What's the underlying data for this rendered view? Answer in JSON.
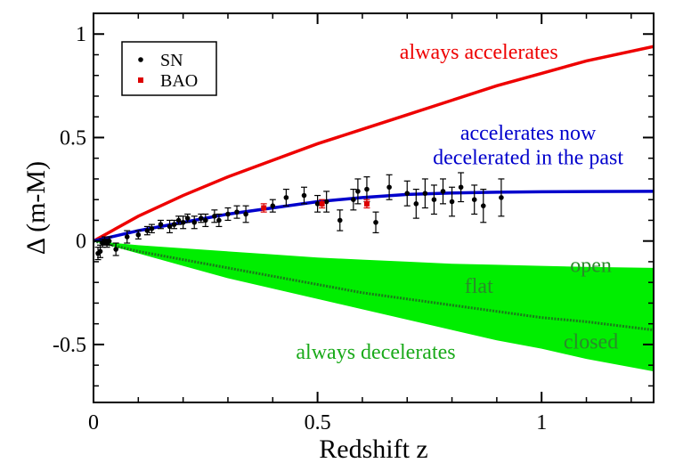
{
  "chart_data": {
    "type": "scatter",
    "xlabel": "Redshift z",
    "ylabel": "Δ (m-M)",
    "xlim": [
      0,
      1.25
    ],
    "ylim": [
      -0.78,
      1.1
    ],
    "x_ticks": [
      0,
      0.5,
      1
    ],
    "x_tick_labels": [
      "0",
      "0.5",
      "1"
    ],
    "y_ticks": [
      -0.5,
      0,
      0.5,
      1
    ],
    "y_tick_labels": [
      "-0.5",
      "0",
      "0.5",
      "1"
    ],
    "grid": false,
    "legend": {
      "position": "top-left",
      "entries": [
        {
          "label": "SN",
          "color": "#000000",
          "marker": "dot"
        },
        {
          "label": "BAO",
          "color": "#dd0000",
          "marker": "square"
        }
      ]
    },
    "series": [
      {
        "name": "SN",
        "kind": "points",
        "color": "#000000",
        "points": [
          {
            "x": 0.01,
            "y": -0.06,
            "err": 0.03
          },
          {
            "x": 0.015,
            "y": -0.05,
            "err": 0.03
          },
          {
            "x": 0.02,
            "y": -0.01,
            "err": 0.02
          },
          {
            "x": 0.025,
            "y": 0.0,
            "err": 0.02
          },
          {
            "x": 0.03,
            "y": -0.01,
            "err": 0.02
          },
          {
            "x": 0.035,
            "y": 0.0,
            "err": 0.02
          },
          {
            "x": 0.05,
            "y": -0.04,
            "err": 0.03
          },
          {
            "x": 0.075,
            "y": 0.02,
            "err": 0.03
          },
          {
            "x": 0.1,
            "y": 0.03,
            "err": 0.02
          },
          {
            "x": 0.12,
            "y": 0.05,
            "err": 0.02
          },
          {
            "x": 0.13,
            "y": 0.06,
            "err": 0.02
          },
          {
            "x": 0.15,
            "y": 0.08,
            "err": 0.02
          },
          {
            "x": 0.17,
            "y": 0.07,
            "err": 0.03
          },
          {
            "x": 0.18,
            "y": 0.08,
            "err": 0.02
          },
          {
            "x": 0.19,
            "y": 0.1,
            "err": 0.02
          },
          {
            "x": 0.2,
            "y": 0.09,
            "err": 0.03
          },
          {
            "x": 0.21,
            "y": 0.11,
            "err": 0.02
          },
          {
            "x": 0.225,
            "y": 0.09,
            "err": 0.03
          },
          {
            "x": 0.24,
            "y": 0.11,
            "err": 0.02
          },
          {
            "x": 0.25,
            "y": 0.1,
            "err": 0.03
          },
          {
            "x": 0.27,
            "y": 0.12,
            "err": 0.03
          },
          {
            "x": 0.28,
            "y": 0.1,
            "err": 0.03
          },
          {
            "x": 0.3,
            "y": 0.13,
            "err": 0.03
          },
          {
            "x": 0.32,
            "y": 0.14,
            "err": 0.03
          },
          {
            "x": 0.34,
            "y": 0.13,
            "err": 0.04
          },
          {
            "x": 0.4,
            "y": 0.17,
            "err": 0.03
          },
          {
            "x": 0.43,
            "y": 0.21,
            "err": 0.04
          },
          {
            "x": 0.47,
            "y": 0.22,
            "err": 0.04
          },
          {
            "x": 0.5,
            "y": 0.18,
            "err": 0.04
          },
          {
            "x": 0.52,
            "y": 0.19,
            "err": 0.05
          },
          {
            "x": 0.55,
            "y": 0.1,
            "err": 0.05
          },
          {
            "x": 0.58,
            "y": 0.2,
            "err": 0.05
          },
          {
            "x": 0.59,
            "y": 0.24,
            "err": 0.06
          },
          {
            "x": 0.61,
            "y": 0.25,
            "err": 0.06
          },
          {
            "x": 0.63,
            "y": 0.09,
            "err": 0.05
          },
          {
            "x": 0.66,
            "y": 0.26,
            "err": 0.06
          },
          {
            "x": 0.7,
            "y": 0.23,
            "err": 0.06
          },
          {
            "x": 0.72,
            "y": 0.18,
            "err": 0.07
          },
          {
            "x": 0.74,
            "y": 0.23,
            "err": 0.07
          },
          {
            "x": 0.76,
            "y": 0.2,
            "err": 0.07
          },
          {
            "x": 0.78,
            "y": 0.24,
            "err": 0.06
          },
          {
            "x": 0.8,
            "y": 0.19,
            "err": 0.07
          },
          {
            "x": 0.82,
            "y": 0.26,
            "err": 0.07
          },
          {
            "x": 0.85,
            "y": 0.2,
            "err": 0.07
          },
          {
            "x": 0.87,
            "y": 0.17,
            "err": 0.08
          },
          {
            "x": 0.91,
            "y": 0.21,
            "err": 0.09
          }
        ]
      },
      {
        "name": "BAO",
        "kind": "points",
        "color": "#dd0000",
        "points": [
          {
            "x": 0.38,
            "y": 0.16,
            "err": 0.02
          },
          {
            "x": 0.51,
            "y": 0.18,
            "err": 0.02
          },
          {
            "x": 0.61,
            "y": 0.18,
            "err": 0.02
          }
        ]
      },
      {
        "kind": "line",
        "color": "#ee0000",
        "x": [
          0,
          0.1,
          0.2,
          0.3,
          0.4,
          0.5,
          0.6,
          0.7,
          0.8,
          0.9,
          1.0,
          1.1,
          1.25
        ],
        "y": [
          0,
          0.12,
          0.22,
          0.31,
          0.39,
          0.47,
          0.54,
          0.61,
          0.68,
          0.75,
          0.81,
          0.87,
          0.94
        ]
      },
      {
        "kind": "line",
        "color": "#0000cc",
        "x": [
          0,
          0.1,
          0.2,
          0.3,
          0.4,
          0.5,
          0.6,
          0.7,
          0.8,
          0.9,
          1.0,
          1.1,
          1.25
        ],
        "y": [
          0,
          0.05,
          0.09,
          0.13,
          0.16,
          0.19,
          0.21,
          0.225,
          0.232,
          0.236,
          0.238,
          0.239,
          0.24
        ]
      },
      {
        "kind": "line",
        "color": "#1a7a1a",
        "dashed": true,
        "x": [
          0,
          0.1,
          0.2,
          0.3,
          0.4,
          0.5,
          0.6,
          0.7,
          0.8,
          0.9,
          1.0,
          1.1,
          1.25
        ],
        "y": [
          0,
          -0.05,
          -0.09,
          -0.13,
          -0.17,
          -0.21,
          -0.25,
          -0.28,
          -0.31,
          -0.34,
          -0.37,
          -0.39,
          -0.43
        ]
      },
      {
        "kind": "band",
        "color": "#00ee00",
        "x": [
          0,
          0.1,
          0.2,
          0.3,
          0.4,
          0.5,
          0.6,
          0.7,
          0.8,
          0.9,
          1.0,
          1.1,
          1.25
        ],
        "upper": [
          0,
          -0.02,
          -0.035,
          -0.05,
          -0.065,
          -0.08,
          -0.09,
          -0.1,
          -0.11,
          -0.115,
          -0.12,
          -0.125,
          -0.13
        ],
        "lower": [
          0,
          -0.06,
          -0.12,
          -0.18,
          -0.23,
          -0.28,
          -0.33,
          -0.38,
          -0.43,
          -0.48,
          -0.52,
          -0.57,
          -0.63
        ]
      }
    ],
    "annotations": [
      {
        "text": "always accelerates",
        "x": 0.86,
        "y": 0.88,
        "color": "#ee0000"
      },
      {
        "text": "accelerates now",
        "x": 0.97,
        "y": 0.49,
        "color": "#0000cc"
      },
      {
        "text": "decelerated in the past",
        "x": 0.97,
        "y": 0.37,
        "color": "#0000cc"
      },
      {
        "text": "flat",
        "x": 0.86,
        "y": -0.25,
        "color": "#2a8a2a"
      },
      {
        "text": "open",
        "x": 1.11,
        "y": -0.15,
        "color": "#2a8a2a"
      },
      {
        "text": "closed",
        "x": 1.11,
        "y": -0.52,
        "color": "#2a8a2a"
      },
      {
        "text": "always decelerates",
        "x": 0.63,
        "y": -0.57,
        "color": "#1aaa1a"
      }
    ]
  }
}
